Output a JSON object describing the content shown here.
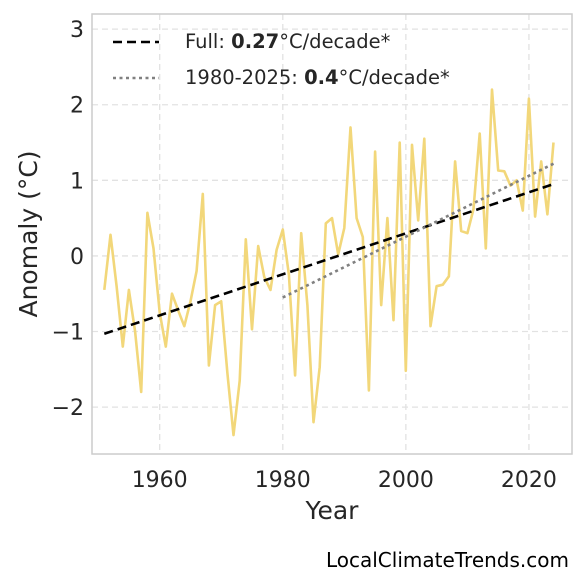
{
  "chart_data": {
    "type": "line",
    "xlabel": "Year",
    "ylabel": "Anomaly (°C)",
    "xlim": [
      1949,
      2027
    ],
    "ylim": [
      -2.62,
      3.2
    ],
    "xticks": [
      1960,
      1980,
      2000,
      2020
    ],
    "yticks": [
      -2,
      -1,
      0,
      1,
      2,
      3
    ],
    "grid": true,
    "legend_position": "top-left",
    "series": [
      {
        "color": "#f2d77a",
        "x": [
          1951,
          1952,
          1953,
          1954,
          1955,
          1956,
          1957,
          1958,
          1959,
          1960,
          1961,
          1962,
          1963,
          1964,
          1965,
          1966,
          1967,
          1968,
          1969,
          1970,
          1971,
          1972,
          1973,
          1974,
          1975,
          1976,
          1977,
          1978,
          1979,
          1980,
          1981,
          1982,
          1983,
          1984,
          1985,
          1986,
          1987,
          1988,
          1989,
          1990,
          1991,
          1992,
          1993,
          1994,
          1995,
          1996,
          1997,
          1998,
          1999,
          2000,
          2001,
          2002,
          2003,
          2004,
          2005,
          2006,
          2007,
          2008,
          2009,
          2010,
          2011,
          2012,
          2013,
          2014,
          2015,
          2016,
          2017,
          2018,
          2019,
          2020,
          2021,
          2022,
          2023,
          2024
        ],
        "y": [
          -0.45,
          0.28,
          -0.4,
          -1.2,
          -0.45,
          -1.0,
          -1.8,
          0.57,
          0.1,
          -0.75,
          -1.2,
          -0.5,
          -0.72,
          -0.93,
          -0.6,
          -0.2,
          0.82,
          -1.45,
          -0.65,
          -0.6,
          -1.55,
          -2.37,
          -1.65,
          0.22,
          -0.97,
          0.13,
          -0.28,
          -0.45,
          0.08,
          0.35,
          -0.25,
          -1.58,
          0.3,
          -0.65,
          -2.2,
          -1.47,
          0.43,
          0.5,
          0.02,
          0.37,
          1.7,
          0.5,
          0.25,
          -1.78,
          1.38,
          -0.65,
          0.5,
          -0.85,
          1.5,
          -1.52,
          1.47,
          0.47,
          1.55,
          -0.93,
          -0.4,
          -0.38,
          -0.27,
          1.25,
          0.33,
          0.3,
          0.62,
          1.62,
          0.1,
          2.2,
          1.13,
          1.12,
          0.93,
          1.0,
          0.6,
          2.08,
          0.52,
          1.25,
          0.55,
          1.5
        ]
      }
    ],
    "trends": [
      {
        "label_prefix": "Full: ",
        "label_value": "0.27",
        "label_suffix": "°C/decade*",
        "style": "dashed",
        "color": "#000000",
        "x": [
          1951,
          2024
        ],
        "y": [
          -1.03,
          0.95
        ]
      },
      {
        "label_prefix": "1980-2025: ",
        "label_value": "0.4",
        "label_suffix": "°C/decade*",
        "style": "dotted",
        "color": "#808080",
        "x": [
          1980,
          2024
        ],
        "y": [
          -0.55,
          1.22
        ]
      }
    ]
  },
  "watermark": "LocalClimateTrends.com"
}
